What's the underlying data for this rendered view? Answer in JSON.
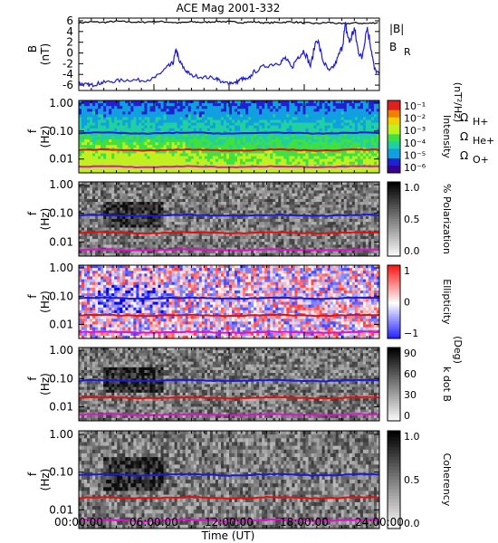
{
  "chart_data": {
    "title": "ACE Mag 2001-332",
    "xlabel": "Time (UT)",
    "x_ticks": [
      "00:00:00",
      "06:00:00",
      "12:00:00",
      "18:00:00",
      "24:00:00"
    ],
    "panels": [
      {
        "type": "line",
        "ylabel": "B",
        "yunit": "(nT)",
        "ylim": [
          -7,
          6.5
        ],
        "y_ticks": [
          "6",
          "4",
          "2",
          "0",
          "-2",
          "-4",
          "-6"
        ],
        "legend": [
          {
            "label": "|B|",
            "color": "#000000"
          },
          {
            "label": "B",
            "sub": "R",
            "color": "#1a1adc"
          }
        ],
        "series": [
          {
            "name": "|B|",
            "color": "#000000",
            "x": [
              0,
              1,
              2,
              3,
              4,
              5,
              6,
              7,
              8,
              9,
              10,
              11,
              12,
              13,
              14,
              15,
              16,
              17,
              18,
              19,
              20,
              21,
              22,
              23,
              24
            ],
            "y": [
              5.6,
              5.8,
              5.7,
              5.9,
              5.8,
              5.7,
              5.9,
              5.8,
              5.6,
              5.8,
              5.7,
              5.9,
              5.8,
              5.7,
              5.8,
              5.6,
              5.7,
              5.8,
              5.6,
              5.5,
              5.7,
              5.4,
              5.6,
              5.5,
              5.7
            ]
          },
          {
            "name": "B_R",
            "color": "#1a1adc",
            "x": [
              0,
              0.5,
              1,
              1.5,
              2,
              3,
              4,
              5,
              6,
              6.5,
              7,
              7.5,
              7.8,
              8,
              8.5,
              9,
              10,
              11,
              11.5,
              12,
              12.5,
              13,
              13.5,
              14,
              15,
              16,
              16.5,
              17,
              17.5,
              18,
              18.5,
              19,
              19.5,
              20,
              20.5,
              21,
              21.3,
              21.6,
              22,
              22.3,
              22.6,
              23,
              23.3,
              23.6,
              24
            ],
            "y": [
              -5.6,
              -5.9,
              -6.0,
              -5.7,
              -5.5,
              -5.2,
              -5.0,
              -5.1,
              -4.8,
              -3.8,
              -2.8,
              -2.0,
              0.6,
              -1.5,
              -3.2,
              -4.2,
              -4.5,
              -4.7,
              -5.6,
              -5.5,
              -5.6,
              -4.8,
              -5.0,
              -3.5,
              -2.3,
              -1.8,
              -1.0,
              -2.8,
              -0.7,
              0.5,
              -2.5,
              3.0,
              -1.5,
              -3.5,
              -2.0,
              1.0,
              5.0,
              2.0,
              4.5,
              0.5,
              -1.0,
              5.0,
              1.5,
              -3.0,
              -4.0
            ]
          }
        ]
      },
      {
        "type": "heatmap",
        "ylabel": "f",
        "yunit": "(Hz)",
        "y_ticks": [
          "1.00",
          "0.10",
          "0.01"
        ],
        "colorbar": {
          "label": "Intensity",
          "unit": "(nT²/Hz)",
          "scale": "log",
          "ticks": [
            "10⁻¹",
            "10⁻²",
            "10⁻³",
            "10⁻⁴",
            "10⁻⁵",
            "10⁻⁶"
          ]
        },
        "legend": [
          {
            "label": "Ω",
            "sub": "H+",
            "color": "#1a1adc"
          },
          {
            "label": "Ω",
            "sub": "He+",
            "color": "#e01010"
          },
          {
            "label": "Ω",
            "sub": "O+",
            "color": "#e010d0"
          }
        ]
      },
      {
        "type": "heatmap",
        "ylabel": "f",
        "yunit": "(Hz)",
        "y_ticks": [
          "1.00",
          "0.10",
          "0.01"
        ],
        "colorbar": {
          "label": "% Polarization",
          "unit": "",
          "scale": "linear",
          "ticks": [
            "1.0",
            "0.5",
            "0.0"
          ]
        }
      },
      {
        "type": "heatmap",
        "ylabel": "f",
        "yunit": "(Hz)",
        "y_ticks": [
          "1.00",
          "0.10",
          "0.01"
        ],
        "colorbar": {
          "label": "Ellipticity",
          "unit": "",
          "scale": "linear",
          "ticks": [
            "1",
            "0",
            "−1"
          ]
        }
      },
      {
        "type": "heatmap",
        "ylabel": "f",
        "yunit": "(Hz)",
        "y_ticks": [
          "1.00",
          "0.10",
          "0.01"
        ],
        "colorbar": {
          "label": "k dot B",
          "unit": "(Deg)",
          "scale": "linear",
          "ticks": [
            "90",
            "60",
            "30",
            "0"
          ]
        }
      },
      {
        "type": "heatmap",
        "ylabel": "f",
        "yunit": "(Hz)",
        "y_ticks": [
          "1.00",
          "0.10",
          "0.01"
        ],
        "colorbar": {
          "label": "Coherency",
          "unit": "",
          "scale": "linear",
          "ticks": [
            "1.0",
            "0.5",
            "0.0"
          ]
        }
      }
    ],
    "gyrofrequency_lines_hz": [
      {
        "name": "ΩH+",
        "color": "#1a1adc",
        "f": 0.085
      },
      {
        "name": "ΩHe+",
        "color": "#e01010",
        "f": 0.021
      },
      {
        "name": "ΩO+",
        "color": "#e010d0",
        "f": 0.0053
      }
    ]
  }
}
